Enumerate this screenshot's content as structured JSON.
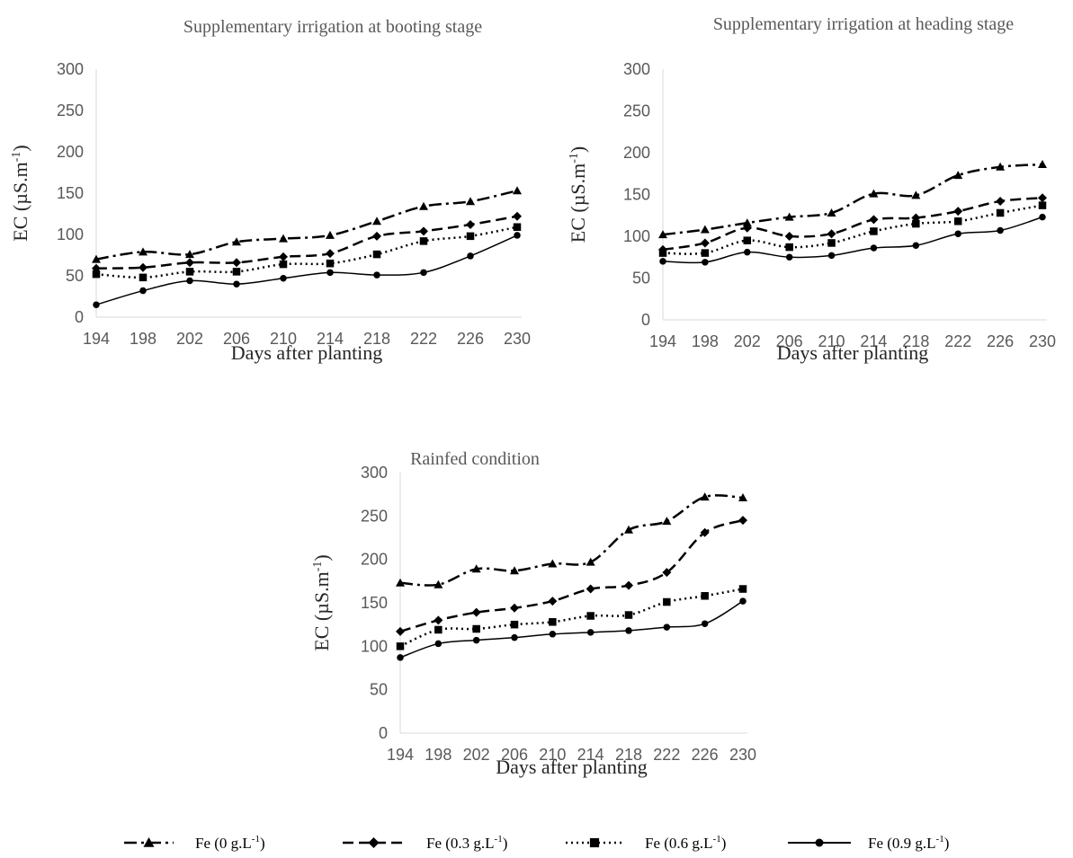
{
  "series_styles": [
    {
      "marker": "triangle",
      "dash": "dash-dot",
      "color": "#000000"
    },
    {
      "marker": "diamond",
      "dash": "long-dash",
      "color": "#000000"
    },
    {
      "marker": "square",
      "dash": "dotted",
      "color": "#000000"
    },
    {
      "marker": "circle",
      "dash": "solid",
      "color": "#000000"
    }
  ],
  "legend": {
    "items": [
      {
        "prefix": "Fe (0 g.L",
        "sup": "-1",
        "suffix": ")"
      },
      {
        "prefix": "Fe (0.3 g.L",
        "sup": "-1",
        "suffix": ")"
      },
      {
        "prefix": "Fe (0.6 g.L",
        "sup": "-1",
        "suffix": ")"
      },
      {
        "prefix": "Fe (0.9 g.L",
        "sup": "-1",
        "suffix": ")"
      }
    ]
  },
  "chart_data": [
    {
      "type": "line",
      "title": "Supplementary irrigation at booting stage",
      "xlabel": "Days after planting",
      "ylabel": {
        "prefix": "EC  (µS.m",
        "sup": "-1",
        "suffix": ")"
      },
      "ylim": [
        0,
        300
      ],
      "yticks": [
        0,
        50,
        100,
        150,
        200,
        250,
        300
      ],
      "x": [
        194,
        198,
        202,
        206,
        210,
        214,
        218,
        222,
        226,
        230
      ],
      "series": [
        {
          "legend": 0,
          "values": [
            70,
            79,
            76,
            91,
            95,
            99,
            116,
            134,
            140,
            153
          ]
        },
        {
          "legend": 1,
          "values": [
            59,
            60,
            66,
            66,
            73,
            77,
            98,
            104,
            112,
            122
          ]
        },
        {
          "legend": 2,
          "values": [
            52,
            48,
            55,
            55,
            64,
            65,
            76,
            92,
            98,
            109
          ]
        },
        {
          "legend": 3,
          "values": [
            15,
            32,
            44,
            40,
            47,
            54,
            51,
            54,
            74,
            99
          ]
        }
      ],
      "grid": false
    },
    {
      "type": "line",
      "title": "Supplementary irrigation at heading stage",
      "xlabel": "Days after planting",
      "ylabel": {
        "prefix": "EC  (µS.m",
        "sup": "-1",
        "suffix": ")"
      },
      "ylim": [
        0,
        300
      ],
      "yticks": [
        0,
        50,
        100,
        150,
        200,
        250,
        300
      ],
      "x": [
        194,
        198,
        202,
        206,
        210,
        214,
        218,
        222,
        226,
        230
      ],
      "series": [
        {
          "legend": 0,
          "values": [
            102,
            108,
            116,
            123,
            128,
            151,
            149,
            173,
            183,
            186
          ]
        },
        {
          "legend": 1,
          "values": [
            84,
            92,
            110,
            100,
            103,
            120,
            122,
            130,
            142,
            146
          ]
        },
        {
          "legend": 2,
          "values": [
            80,
            80,
            95,
            87,
            92,
            106,
            115,
            118,
            128,
            137
          ]
        },
        {
          "legend": 3,
          "values": [
            70,
            69,
            81,
            75,
            77,
            86,
            89,
            103,
            107,
            123
          ]
        }
      ],
      "grid": false
    },
    {
      "type": "line",
      "title": "Rainfed condition",
      "xlabel": "Days after planting",
      "ylabel": {
        "prefix": "EC (µS.m",
        "sup": "-1",
        "suffix": ")"
      },
      "ylim": [
        0,
        300
      ],
      "yticks": [
        0,
        50,
        100,
        150,
        200,
        250,
        300
      ],
      "x": [
        194,
        198,
        202,
        206,
        210,
        214,
        218,
        222,
        226,
        230
      ],
      "series": [
        {
          "legend": 0,
          "values": [
            173,
            171,
            189,
            187,
            195,
            197,
            234,
            244,
            272,
            271
          ]
        },
        {
          "legend": 1,
          "values": [
            117,
            130,
            139,
            144,
            152,
            166,
            170,
            185,
            231,
            245
          ]
        },
        {
          "legend": 2,
          "values": [
            100,
            119,
            120,
            125,
            128,
            135,
            136,
            151,
            158,
            166
          ]
        },
        {
          "legend": 3,
          "values": [
            87,
            103,
            107,
            110,
            114,
            116,
            118,
            122,
            126,
            152
          ]
        }
      ],
      "grid": false
    }
  ]
}
